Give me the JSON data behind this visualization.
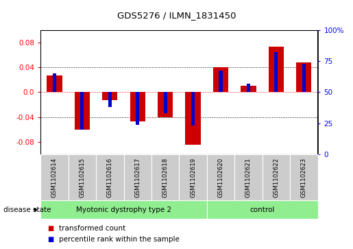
{
  "title": "GDS5276 / ILMN_1831450",
  "samples": [
    "GSM1102614",
    "GSM1102615",
    "GSM1102616",
    "GSM1102617",
    "GSM1102618",
    "GSM1102619",
    "GSM1102620",
    "GSM1102621",
    "GSM1102622",
    "GSM1102623"
  ],
  "transformed_count": [
    0.027,
    -0.06,
    -0.013,
    -0.047,
    -0.04,
    -0.085,
    0.04,
    0.01,
    0.073,
    0.048
  ],
  "percentile_rank": [
    65,
    20,
    38,
    24,
    33,
    23,
    67,
    57,
    82,
    73
  ],
  "ylim": [
    -0.1,
    0.1
  ],
  "yticks_left": [
    -0.08,
    -0.04,
    0.0,
    0.04,
    0.08
  ],
  "yticks_right": [
    0,
    25,
    50,
    75,
    100
  ],
  "bar_color": "#cc0000",
  "pct_color": "#0000cc",
  "group1_label": "Myotonic dystrophy type 2",
  "group2_label": "control",
  "group1_indices": [
    0,
    1,
    2,
    3,
    4,
    5
  ],
  "group2_indices": [
    6,
    7,
    8,
    9
  ],
  "group1_bg": "#90ee90",
  "group2_bg": "#90ee90",
  "label_bg": "#cccccc",
  "disease_state_label": "disease state",
  "legend1": "transformed count",
  "legend2": "percentile rank within the sample"
}
